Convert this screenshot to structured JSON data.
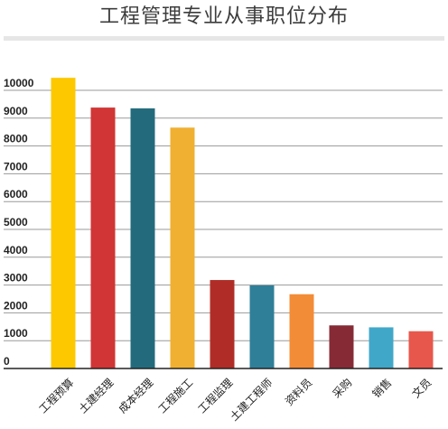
{
  "title": "工程管理专业从事职位分布",
  "chart_data": {
    "type": "bar",
    "title": "工程管理专业从事职位分布",
    "xlabel": "",
    "ylabel": "",
    "ylim": [
      0,
      10000
    ],
    "yticks": [
      0,
      1000,
      2000,
      3000,
      4000,
      5000,
      6000,
      7000,
      8000,
      9000,
      10000
    ],
    "grid": true,
    "categories": [
      "工程预算",
      "土建经理",
      "成本经理",
      "工程施工",
      "工程监理",
      "土建工程师",
      "资料员",
      "采购",
      "销售",
      "文员"
    ],
    "values": [
      10450,
      9380,
      9350,
      8660,
      3180,
      2990,
      2670,
      1550,
      1480,
      1340
    ],
    "colors": [
      "#fdc800",
      "#d13535",
      "#236b7c",
      "#f0b032",
      "#b02d27",
      "#2f7f98",
      "#f38c37",
      "#862b36",
      "#41a7c9",
      "#e8574c"
    ]
  }
}
